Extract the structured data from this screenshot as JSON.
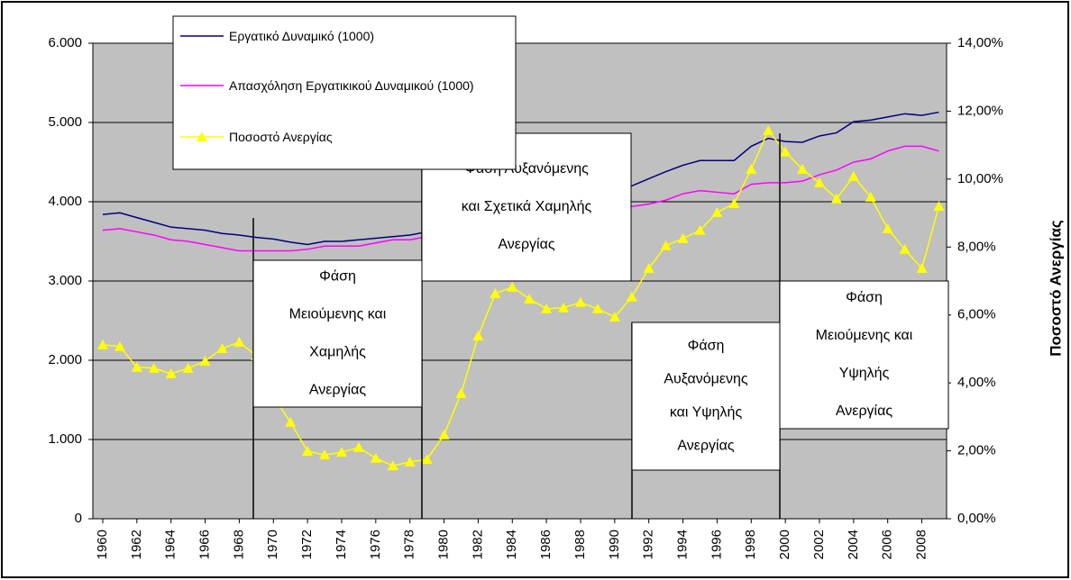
{
  "chart_data": {
    "type": "line",
    "y2label": "Ποσοστό Ανεργίας",
    "x": [
      1960,
      1961,
      1962,
      1963,
      1964,
      1965,
      1966,
      1967,
      1968,
      1969,
      1970,
      1971,
      1972,
      1973,
      1974,
      1975,
      1976,
      1977,
      1978,
      1979,
      1980,
      1981,
      1982,
      1983,
      1984,
      1985,
      1986,
      1987,
      1988,
      1989,
      1990,
      1991,
      1992,
      1993,
      1994,
      1995,
      1996,
      1997,
      1998,
      1999,
      2000,
      2001,
      2002,
      2003,
      2004,
      2005,
      2006,
      2007,
      2008,
      2009
    ],
    "xlim": [
      1959.42,
      2009.45
    ],
    "xticks": [
      1960,
      1962,
      1964,
      1966,
      1968,
      1970,
      1972,
      1974,
      1976,
      1978,
      1980,
      1982,
      1984,
      1986,
      1988,
      1990,
      1992,
      1994,
      1996,
      1998,
      2000,
      2002,
      2004,
      2006,
      2008
    ],
    "ylim": [
      0,
      6000
    ],
    "yticks": [
      0,
      {
        "value": 1000,
        "label": "1.000"
      },
      {
        "value": 2000,
        "label": "2.000"
      },
      {
        "value": 3000,
        "label": "3.000"
      },
      {
        "value": 4000,
        "label": "4.000"
      },
      {
        "value": 5000,
        "label": "5.000"
      },
      {
        "value": 6000,
        "label": "6.000"
      }
    ],
    "y2lim": [
      0,
      14
    ],
    "y2ticks": [
      {
        "value": 0,
        "label": "0,00%"
      },
      {
        "value": 2,
        "label": "2,00%"
      },
      {
        "value": 4,
        "label": "4,00%"
      },
      {
        "value": 6,
        "label": "6,00%"
      },
      {
        "value": 8,
        "label": "8,00%"
      },
      {
        "value": 10,
        "label": "10,00%"
      },
      {
        "value": 12,
        "label": "12,00%"
      },
      {
        "value": 14,
        "label": "14,00%"
      }
    ],
    "grid": true,
    "series": [
      {
        "name": "Εργατικό Δυναμικό (1000)",
        "color": "#000080",
        "values": [
          3840,
          3860,
          3800,
          3740,
          3680,
          3660,
          3640,
          3600,
          3580,
          3550,
          3530,
          3490,
          3460,
          3500,
          3500,
          3520,
          3540,
          3560,
          3580,
          3620,
          3700,
          3800,
          3880,
          3950,
          3990,
          4000,
          4030,
          4050,
          4080,
          4110,
          4150,
          4200,
          4290,
          4380,
          4460,
          4520,
          4520,
          4520,
          4700,
          4800,
          4760,
          4750,
          4830,
          4870,
          5010,
          5030,
          5070,
          5110,
          5090,
          5130
        ]
      },
      {
        "name": "Απασχόληση Εργατικικού Δυναμικού (1000)",
        "color": "#ff00ff",
        "values": [
          3640,
          3660,
          3620,
          3580,
          3520,
          3500,
          3460,
          3420,
          3380,
          3380,
          3380,
          3380,
          3400,
          3440,
          3440,
          3440,
          3480,
          3520,
          3520,
          3560,
          3620,
          3700,
          3740,
          3760,
          3770,
          3780,
          3800,
          3820,
          3840,
          3860,
          3900,
          3940,
          3970,
          4020,
          4100,
          4140,
          4120,
          4100,
          4220,
          4240,
          4240,
          4260,
          4340,
          4400,
          4500,
          4540,
          4640,
          4700,
          4700,
          4640
        ]
      },
      {
        "name": "Ποσοστό Ανεργίας",
        "color": "#ffff00",
        "axis": "y2",
        "marker": "triangle",
        "values": [
          5.12,
          5.07,
          4.46,
          4.43,
          4.27,
          4.43,
          4.64,
          5.01,
          5.2,
          4.8,
          3.6,
          2.84,
          1.99,
          1.88,
          1.96,
          2.1,
          1.78,
          1.56,
          1.67,
          1.75,
          2.47,
          3.69,
          5.38,
          6.63,
          6.82,
          6.47,
          6.18,
          6.21,
          6.37,
          6.18,
          5.94,
          6.53,
          7.37,
          8.04,
          8.25,
          8.49,
          9.02,
          9.28,
          10.29,
          11.43,
          10.8,
          10.29,
          9.89,
          9.42,
          10.08,
          9.47,
          8.54,
          7.93,
          7.37,
          9.2
        ]
      }
    ],
    "annotations": [
      {
        "lines": [
          "Φάση",
          "Μειούμενης και",
          "Χαμηλής",
          "Ανεργίας"
        ]
      },
      {
        "lines": [
          "Φάση Αυξανόμενης",
          "και Σχετικά  Χαμηλής",
          "Ανεργίας"
        ]
      },
      {
        "lines": [
          "Φάση",
          "Αυξανόμενης",
          "και Υψηλής",
          "Ανεργίας"
        ]
      },
      {
        "lines": [
          "Φάση",
          "Μειούμενης και",
          "Υψηλής",
          "Ανεργίας"
        ]
      }
    ]
  }
}
